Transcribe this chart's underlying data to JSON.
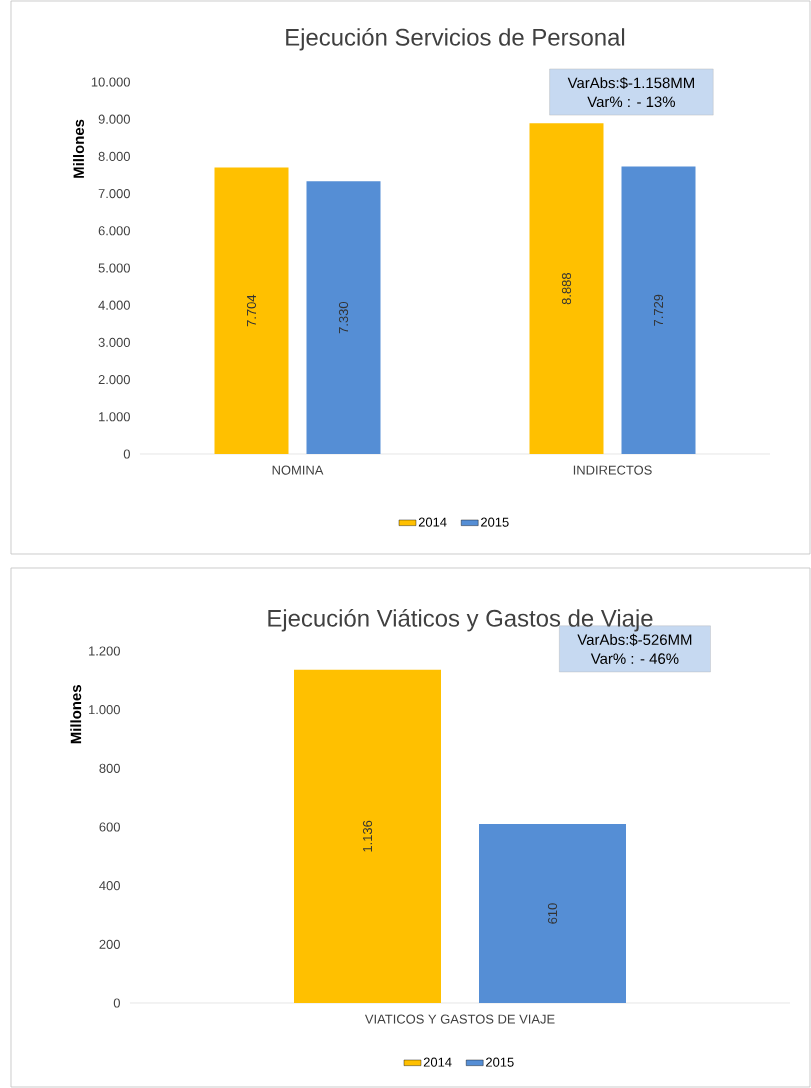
{
  "chart_data": [
    {
      "type": "bar",
      "title": "Ejecución Servicios de Personal",
      "ylabel": "Millones",
      "categories": [
        "NOMINA",
        "INDIRECTOS"
      ],
      "series": [
        {
          "name": "2014",
          "color": "#ffc000",
          "values": [
            7704,
            8888
          ],
          "value_labels": [
            "7.704",
            "8.888"
          ]
        },
        {
          "name": "2015",
          "color": "#558ed5",
          "values": [
            7330,
            7729
          ],
          "value_labels": [
            "7.330",
            "7.729"
          ]
        }
      ],
      "ylim": [
        0,
        10000
      ],
      "yticks": [
        {
          "value": 0,
          "label": "0"
        },
        {
          "value": 1000,
          "label": "1.000"
        },
        {
          "value": 2000,
          "label": "2.000"
        },
        {
          "value": 3000,
          "label": "3.000"
        },
        {
          "value": 4000,
          "label": "4.000"
        },
        {
          "value": 5000,
          "label": "5.000"
        },
        {
          "value": 6000,
          "label": "6.000"
        },
        {
          "value": 7000,
          "label": "7.000"
        },
        {
          "value": 8000,
          "label": "8.000"
        },
        {
          "value": 9000,
          "label": "9.000"
        },
        {
          "value": 10000,
          "label": "10.000"
        }
      ],
      "annotations": [
        "VarAbs:$-1.158MM",
        "Var% : - 13%"
      ],
      "legend": "bottom"
    },
    {
      "type": "bar",
      "title": "Ejecución Viáticos y Gastos de Viaje",
      "ylabel": "Millones",
      "categories": [
        "VIATICOS Y GASTOS DE VIAJE"
      ],
      "series": [
        {
          "name": "2014",
          "color": "#ffc000",
          "values": [
            1136
          ],
          "value_labels": [
            "1.136"
          ]
        },
        {
          "name": "2015",
          "color": "#558ed5",
          "values": [
            610
          ],
          "value_labels": [
            "610"
          ]
        }
      ],
      "ylim": [
        0,
        1200
      ],
      "yticks": [
        {
          "value": 0,
          "label": "0"
        },
        {
          "value": 200,
          "label": "200"
        },
        {
          "value": 400,
          "label": "400"
        },
        {
          "value": 600,
          "label": "600"
        },
        {
          "value": 800,
          "label": "800"
        },
        {
          "value": 1000,
          "label": "1.000"
        },
        {
          "value": 1200,
          "label": "1.200"
        }
      ],
      "annotations": [
        "VarAbs:$-526MM",
        "Var% : - 46%"
      ],
      "legend": "bottom"
    }
  ]
}
